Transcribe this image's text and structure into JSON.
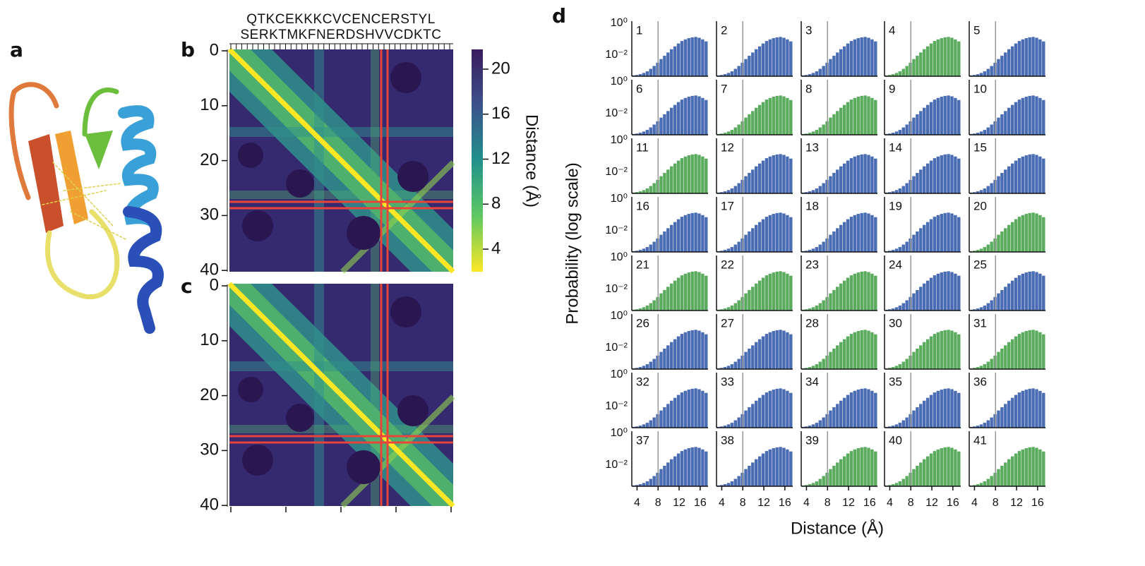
{
  "panel_labels": [
    "a",
    "b",
    "c",
    "d"
  ],
  "sequence": [
    "QTKCEKKKCVCENCERSTYL",
    "SERKTMKFNERDSHVVCDKTC"
  ],
  "heatmap_ticks": [
    0,
    10,
    20,
    30,
    40
  ],
  "colorbar": {
    "ticks": [
      20,
      16,
      12,
      8,
      4
    ],
    "label": "Distance (Å)"
  },
  "histograms": {
    "y_tick_labels": [
      "10⁰",
      "10⁻²"
    ],
    "x_ticks": [
      4,
      8,
      12,
      16
    ],
    "xlim": [
      3,
      17.5
    ],
    "contact_line": 8,
    "x_label": "Distance (Å)",
    "y_label": "Probability (log scale)",
    "panels": [
      {
        "id": 1,
        "color": "#4a6cb3"
      },
      {
        "id": 2,
        "color": "#4a6cb3"
      },
      {
        "id": 3,
        "color": "#4a6cb3"
      },
      {
        "id": 4,
        "color": "#5aab5e"
      },
      {
        "id": 5,
        "color": "#4a6cb3"
      },
      {
        "id": 6,
        "color": "#4a6cb3"
      },
      {
        "id": 7,
        "color": "#5aab5e"
      },
      {
        "id": 8,
        "color": "#5aab5e"
      },
      {
        "id": 9,
        "color": "#4a6cb3"
      },
      {
        "id": 10,
        "color": "#4a6cb3"
      },
      {
        "id": 11,
        "color": "#5aab5e"
      },
      {
        "id": 12,
        "color": "#4a6cb3"
      },
      {
        "id": 13,
        "color": "#4a6cb3"
      },
      {
        "id": 14,
        "color": "#4a6cb3"
      },
      {
        "id": 15,
        "color": "#4a6cb3"
      },
      {
        "id": 16,
        "color": "#4a6cb3"
      },
      {
        "id": 17,
        "color": "#4a6cb3"
      },
      {
        "id": 18,
        "color": "#4a6cb3"
      },
      {
        "id": 19,
        "color": "#4a6cb3"
      },
      {
        "id": 20,
        "color": "#5aab5e"
      },
      {
        "id": 21,
        "color": "#5aab5e"
      },
      {
        "id": 22,
        "color": "#5aab5e"
      },
      {
        "id": 23,
        "color": "#5aab5e"
      },
      {
        "id": 24,
        "color": "#4a6cb3"
      },
      {
        "id": 25,
        "color": "#4a6cb3"
      },
      {
        "id": 26,
        "color": "#4a6cb3"
      },
      {
        "id": 27,
        "color": "#4a6cb3"
      },
      {
        "id": 28,
        "color": "#5aab5e"
      },
      {
        "id": 30,
        "color": "#5aab5e"
      },
      {
        "id": 31,
        "color": "#5aab5e"
      },
      {
        "id": 32,
        "color": "#4a6cb3"
      },
      {
        "id": 33,
        "color": "#4a6cb3"
      },
      {
        "id": 34,
        "color": "#4a6cb3"
      },
      {
        "id": 35,
        "color": "#4a6cb3"
      },
      {
        "id": 36,
        "color": "#4a6cb3"
      },
      {
        "id": 37,
        "color": "#4a6cb3"
      },
      {
        "id": 38,
        "color": "#4a6cb3"
      },
      {
        "id": 39,
        "color": "#5aab5e"
      },
      {
        "id": 40,
        "color": "#5aab5e"
      },
      {
        "id": 41,
        "color": "#5aab5e"
      }
    ]
  }
}
